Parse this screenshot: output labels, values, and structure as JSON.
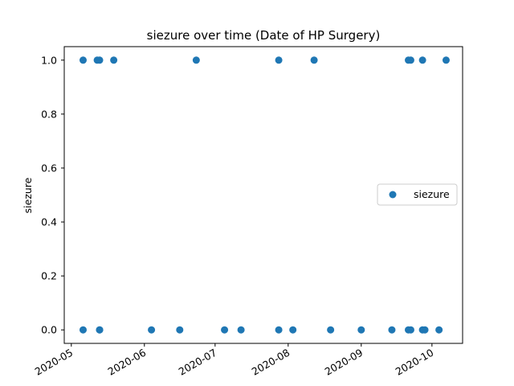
{
  "chart_data": {
    "type": "scatter",
    "title": "siezure over time (Date of HP Surgery)",
    "xlabel": "",
    "ylabel": "siezure",
    "x_type": "date",
    "xlim": [
      "2020-04-28",
      "2020-10-14"
    ],
    "ylim": [
      -0.05,
      1.05
    ],
    "x_ticks": [
      "2020-05",
      "2020-06",
      "2020-07",
      "2020-08",
      "2020-09",
      "2020-10"
    ],
    "x_tick_labels": [
      "2020-05",
      "2020-06",
      "2020-07",
      "2020-08",
      "2020-09",
      "2020-10"
    ],
    "y_ticks": [
      0.0,
      0.2,
      0.4,
      0.6,
      0.8,
      1.0
    ],
    "y_tick_labels": [
      "0.0",
      "0.2",
      "0.4",
      "0.6",
      "0.8",
      "1.0"
    ],
    "grid": false,
    "legend": {
      "position": "center-right",
      "entries": [
        "siezure"
      ]
    },
    "series": [
      {
        "name": "siezure",
        "color": "#1f77b4",
        "points": [
          {
            "x": "2020-05-06",
            "y": 1
          },
          {
            "x": "2020-05-12",
            "y": 1
          },
          {
            "x": "2020-05-13",
            "y": 1
          },
          {
            "x": "2020-05-19",
            "y": 1
          },
          {
            "x": "2020-06-23",
            "y": 1
          },
          {
            "x": "2020-07-28",
            "y": 1
          },
          {
            "x": "2020-08-12",
            "y": 1
          },
          {
            "x": "2020-09-21",
            "y": 1
          },
          {
            "x": "2020-09-22",
            "y": 1
          },
          {
            "x": "2020-09-27",
            "y": 1
          },
          {
            "x": "2020-10-07",
            "y": 1
          },
          {
            "x": "2020-05-06",
            "y": 0
          },
          {
            "x": "2020-05-13",
            "y": 0
          },
          {
            "x": "2020-05-13",
            "y": 0
          },
          {
            "x": "2020-06-04",
            "y": 0
          },
          {
            "x": "2020-06-16",
            "y": 0
          },
          {
            "x": "2020-07-05",
            "y": 0
          },
          {
            "x": "2020-07-12",
            "y": 0
          },
          {
            "x": "2020-07-28",
            "y": 0
          },
          {
            "x": "2020-08-03",
            "y": 0
          },
          {
            "x": "2020-08-19",
            "y": 0
          },
          {
            "x": "2020-09-01",
            "y": 0
          },
          {
            "x": "2020-09-14",
            "y": 0
          },
          {
            "x": "2020-09-21",
            "y": 0
          },
          {
            "x": "2020-09-22",
            "y": 0
          },
          {
            "x": "2020-09-27",
            "y": 0
          },
          {
            "x": "2020-09-28",
            "y": 0
          },
          {
            "x": "2020-10-04",
            "y": 0
          }
        ]
      }
    ]
  }
}
